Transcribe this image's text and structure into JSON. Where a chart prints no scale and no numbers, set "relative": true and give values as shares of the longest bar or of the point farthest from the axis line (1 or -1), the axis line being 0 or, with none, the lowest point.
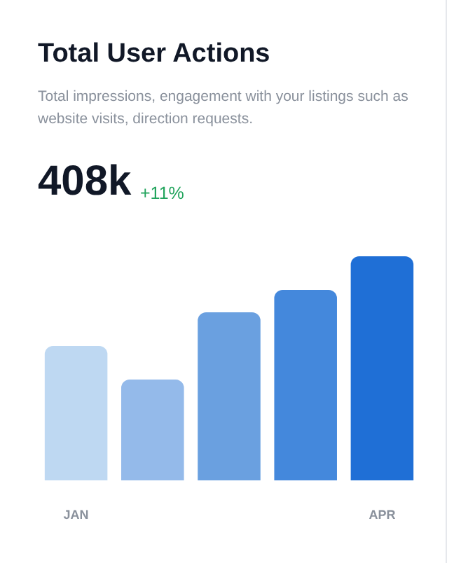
{
  "chart_data": {
    "type": "bar",
    "title": "Total User Actions",
    "subtitle": "Total impressions, engagement with your listings such as website visits, direction requests.",
    "annotations": [
      "408k",
      "+11%"
    ],
    "categories": [
      "JAN",
      null,
      null,
      null,
      "APR"
    ],
    "values": [
      0.6,
      0.45,
      0.75,
      0.85,
      1
    ],
    "colors": [
      "#bed8f2",
      "#94baea",
      "#6aa0e0",
      "#4488dc",
      "#1f6fd6"
    ],
    "relative": true
  }
}
